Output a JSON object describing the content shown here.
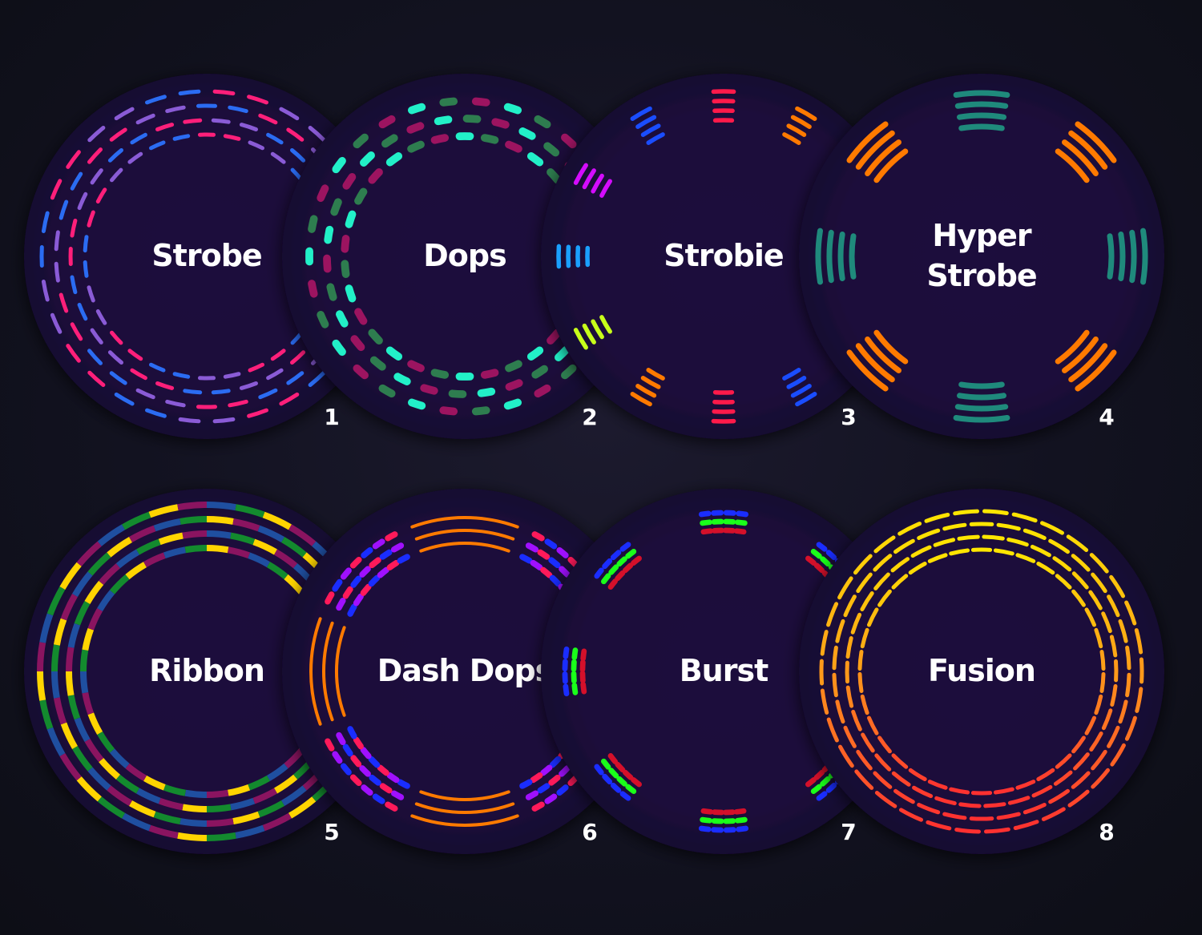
{
  "patterns": [
    {
      "number": "1",
      "label_lines": [
        "Strobe"
      ],
      "style": "strobe",
      "colors": [
        "#ff1f7a",
        "#8a5bd6",
        "#2b6cf2"
      ]
    },
    {
      "number": "2",
      "label_lines": [
        "Dops"
      ],
      "style": "dops",
      "colors": [
        "#22f0c8",
        "#2e7d4f",
        "#9c1460"
      ]
    },
    {
      "number": "3",
      "label_lines": [
        "Strobie"
      ],
      "style": "strobie",
      "colors": [
        "#ff1a4a",
        "#ff7a00",
        "#c8ff1a",
        "#1aa0ff",
        "#d40cff",
        "#1a4dff"
      ]
    },
    {
      "number": "4",
      "label_lines": [
        "Hyper",
        "Strobe"
      ],
      "style": "hyper",
      "colors": [
        "#ff7a00",
        "#1f8a7c"
      ]
    },
    {
      "number": "5",
      "label_lines": [
        "Ribbon"
      ],
      "style": "ribbon",
      "colors": [
        "#ffd400",
        "#8a1460",
        "#1f4fa0",
        "#138a2e"
      ]
    },
    {
      "number": "6",
      "label_lines": [
        "Dash Dops"
      ],
      "style": "dashdops",
      "colors": [
        "#ff7a00",
        "#1a2dff",
        "#a010ff",
        "#ff1a5a"
      ]
    },
    {
      "number": "7",
      "label_lines": [
        "Burst"
      ],
      "style": "burst",
      "colors": [
        "#d4102a",
        "#1aff1a",
        "#1a2dff"
      ]
    },
    {
      "number": "8",
      "label_lines": [
        "Fusion"
      ],
      "style": "fusion",
      "colors": [
        "#ffe600",
        "#ff9a1a",
        "#ff3030"
      ]
    }
  ]
}
